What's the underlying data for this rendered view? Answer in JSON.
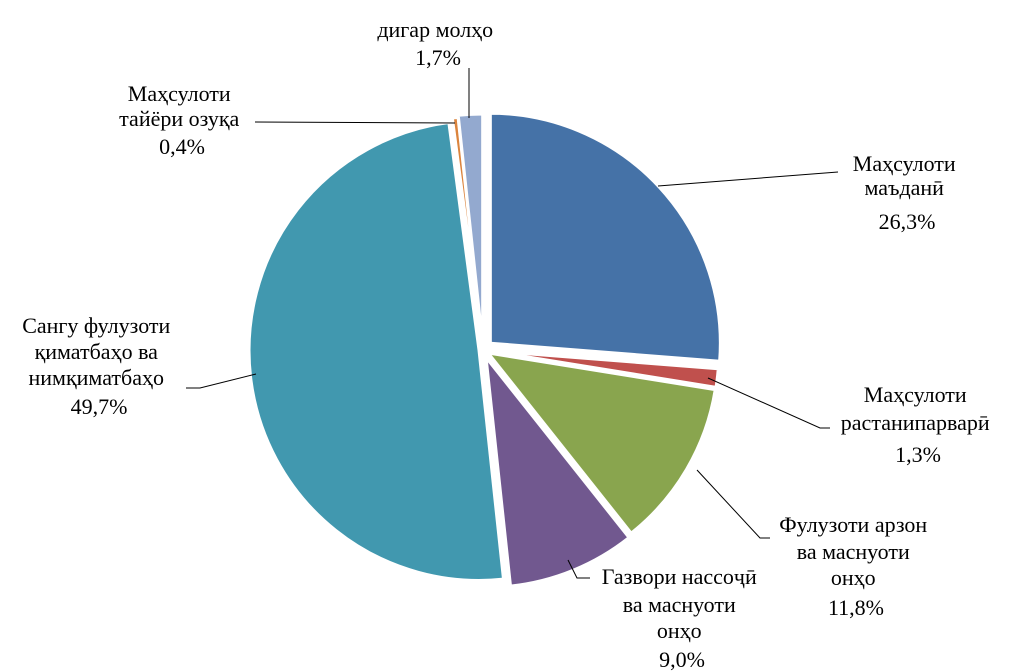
{
  "chart_data": {
    "type": "pie",
    "title": "",
    "slices": [
      {
        "lines": [
          "Маҳсулоти",
          "маъданӣ"
        ],
        "value_label": "26,3%",
        "value": 26.3,
        "color": "#4572A7"
      },
      {
        "lines": [
          "Маҳсулоти",
          "растанипарварӣ"
        ],
        "value_label": "1,3%",
        "value": 1.3,
        "color": "#C0504D"
      },
      {
        "lines": [
          "Фулузоти арзон",
          "ва маснуоти",
          "онҳо"
        ],
        "value_label": "11,8%",
        "value": 11.8,
        "color": "#89A54E"
      },
      {
        "lines": [
          "Газвори нассоҷӣ",
          "ва маснуоти",
          "онҳо"
        ],
        "value_label": "9,0%",
        "value": 9.0,
        "color": "#71588F"
      },
      {
        "lines": [
          "Сангу фулузоти",
          "қиматбаҳо ва",
          "нимқиматбаҳо"
        ],
        "value_label": "49,7%",
        "value": 49.7,
        "color": "#4198AF"
      },
      {
        "lines": [
          "Маҳсулоти",
          "тайёри озуқа"
        ],
        "value_label": "0,4%",
        "value": 0.4,
        "color": "#DB843D"
      },
      {
        "lines": [
          "дигар молҳо"
        ],
        "value_label": "1,7%",
        "value": 1.7,
        "color": "#93A9CF"
      }
    ]
  }
}
